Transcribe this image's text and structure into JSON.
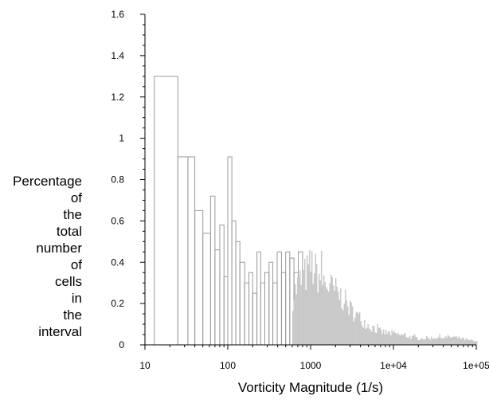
{
  "chart_data": {
    "type": "bar",
    "subtype": "histogram",
    "title": "",
    "xlabel": "Vorticity Magnitude (1/s)",
    "ylabel_lines": [
      "Percentage",
      "of",
      "the",
      "total",
      "number",
      "of",
      "cells",
      "in",
      "the",
      "interval"
    ],
    "x_scale": "log",
    "xlim": [
      10,
      100000
    ],
    "ylim": [
      0,
      1.6
    ],
    "x_ticks": [
      "10",
      "100",
      "1000",
      "1e+04",
      "1e+05"
    ],
    "y_ticks": [
      "0",
      "0.2",
      "0.4",
      "0.6",
      "0.8",
      "1",
      "1.2",
      "1.4",
      "1.6"
    ],
    "grid": false,
    "legend": "none",
    "colors": {
      "outline_bins": "#9a9a9a",
      "filled_bins": "#c8c8c8",
      "axis": "#000000"
    },
    "series": [
      {
        "bins_x_start": [
          13,
          25,
          33,
          40,
          50,
          62,
          70,
          80,
          90,
          100,
          112,
          125,
          140,
          160,
          180,
          200,
          225,
          250,
          280,
          315,
          350,
          395,
          445,
          500,
          560,
          630,
          710
        ],
        "bins_x_end": [
          25,
          33,
          40,
          50,
          62,
          70,
          80,
          90,
          100,
          112,
          125,
          140,
          160,
          180,
          200,
          225,
          250,
          280,
          315,
          350,
          395,
          445,
          500,
          560,
          630,
          710,
          800
        ],
        "values": [
          1.3,
          0.91,
          0.91,
          0.65,
          0.54,
          0.72,
          0.46,
          0.58,
          0.33,
          0.91,
          0.6,
          0.5,
          0.4,
          0.3,
          0.35,
          0.25,
          0.45,
          0.3,
          0.35,
          0.4,
          0.3,
          0.45,
          0.35,
          0.45,
          0.42,
          0.35,
          0.45
        ]
      },
      {
        "envelope_x": [
          600,
          700,
          800,
          900,
          1000,
          1100,
          1200,
          1400,
          1600,
          2000,
          2500,
          3000,
          4000,
          5000,
          7000,
          10000,
          20000,
          50000,
          100000
        ],
        "envelope_y": [
          0.3,
          0.38,
          0.42,
          0.45,
          0.5,
          0.46,
          0.44,
          0.4,
          0.37,
          0.33,
          0.28,
          0.22,
          0.16,
          0.12,
          0.08,
          0.07,
          0.04,
          0.05,
          0.02
        ]
      }
    ]
  }
}
